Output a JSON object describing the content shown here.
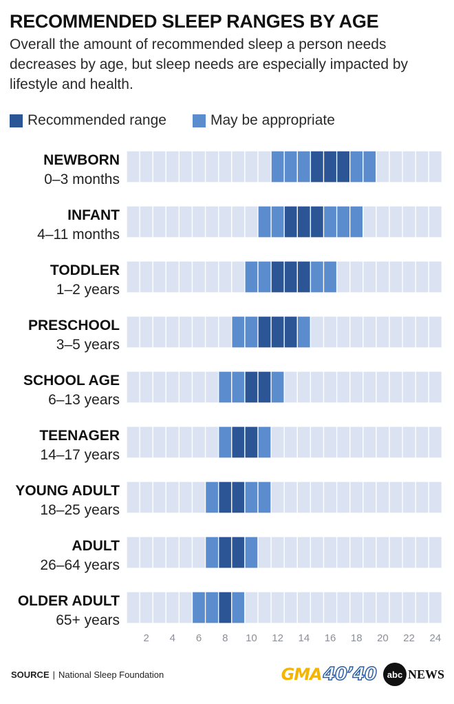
{
  "header": {
    "title": "RECOMMENDED SLEEP RANGES BY AGE",
    "subtitle": "Overall the amount of recommended sleep a person needs decreases by age, but sleep needs are especially impacted by lifestyle and health."
  },
  "legend": {
    "recommended_label": "Recommended range",
    "appropriate_label": "May be appropriate"
  },
  "colors": {
    "recommended": "#2b5594",
    "appropriate": "#5b8ccd",
    "background_cell": "#dbe3f2",
    "axis_text": "#8a8f99"
  },
  "chart_data": {
    "type": "bar",
    "xlim": [
      0,
      24
    ],
    "x_ticks": [
      "2",
      "4",
      "6",
      "8",
      "10",
      "12",
      "14",
      "16",
      "18",
      "20",
      "22",
      "24"
    ],
    "groups": [
      {
        "name": "NEWBORN",
        "ages": "0–3 months",
        "appropriate": [
          11,
          19
        ],
        "recommended": [
          14,
          17
        ]
      },
      {
        "name": "INFANT",
        "ages": "4–11 months",
        "appropriate": [
          10,
          18
        ],
        "recommended": [
          12,
          15
        ]
      },
      {
        "name": "TODDLER",
        "ages": "1–2 years",
        "appropriate": [
          9,
          16
        ],
        "recommended": [
          11,
          14
        ]
      },
      {
        "name": "PRESCHOOL",
        "ages": "3–5 years",
        "appropriate": [
          8,
          14
        ],
        "recommended": [
          10,
          13
        ]
      },
      {
        "name": "SCHOOL AGE",
        "ages": "6–13 years",
        "appropriate": [
          7,
          12
        ],
        "recommended": [
          9,
          11
        ]
      },
      {
        "name": "TEENAGER",
        "ages": "14–17 years",
        "appropriate": [
          7,
          11
        ],
        "recommended": [
          8,
          10
        ]
      },
      {
        "name": "YOUNG ADULT",
        "ages": "18–25 years",
        "appropriate": [
          6,
          11
        ],
        "recommended": [
          7,
          9
        ]
      },
      {
        "name": "ADULT",
        "ages": "26–64 years",
        "appropriate": [
          6,
          10
        ],
        "recommended": [
          7,
          9
        ]
      },
      {
        "name": "OLDER ADULT",
        "ages": "65+ years",
        "appropriate": [
          5,
          9
        ],
        "recommended": [
          7,
          8
        ]
      }
    ]
  },
  "footer": {
    "source_label": "SOURCE",
    "source_separator": "|",
    "source_text": "National Sleep Foundation",
    "logo_gma": "GMA",
    "logo_4040": "40’40",
    "logo_abc": "abc",
    "logo_news": "NEWS"
  }
}
